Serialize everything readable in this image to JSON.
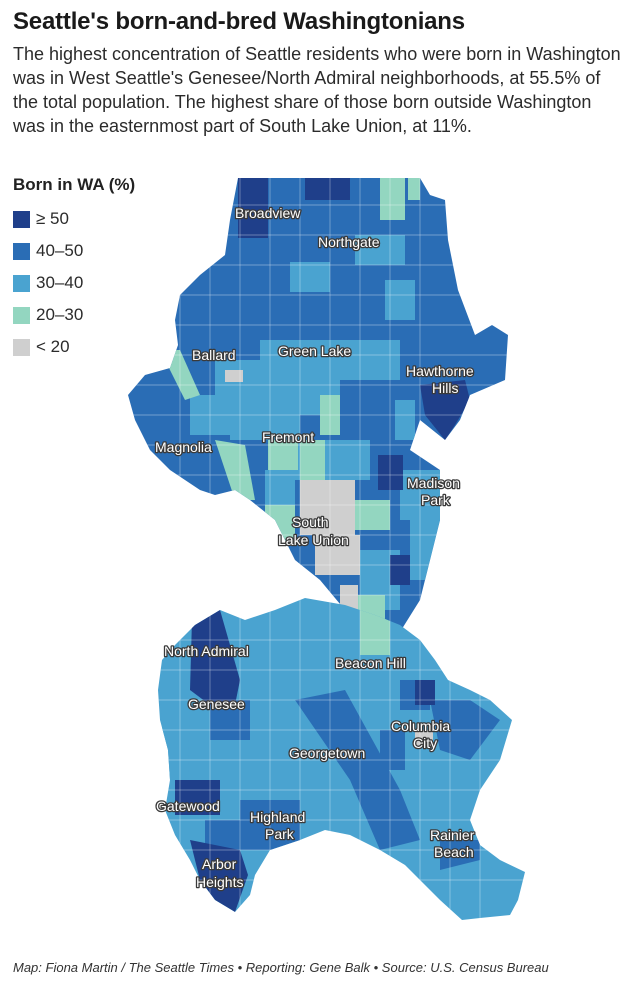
{
  "title": "Seattle's born-and-bred Washingtonians",
  "subtitle": "The highest concentration of Seattle residents who were born in Washington was in West Seattle's Genesee/North Admiral neighborhoods, at 55.5% of the total population. The highest share of those born outside Washington was in the easternmost part of South Lake Union, at 11%.",
  "legend": {
    "title": "Born in WA (%)",
    "items": [
      {
        "label": "≥ 50",
        "color": "#1f3f8a"
      },
      {
        "label": "40–50",
        "color": "#2a6db5"
      },
      {
        "label": "30–40",
        "color": "#4aa3d0"
      },
      {
        "label": "20–30",
        "color": "#93d6c0"
      },
      {
        "label": "< 20",
        "color": "#cfcfcf"
      }
    ]
  },
  "map_labels": {
    "broadview": "Broadview",
    "northgate": "Northgate",
    "ballard": "Ballard",
    "green_lake": "Green Lake",
    "hawthorne_hills_1": "Hawthorne",
    "hawthorne_hills_2": "Hills",
    "magnolia": "Magnolia",
    "fremont": "Fremont",
    "madison_park_1": "Madison",
    "madison_park_2": "Park",
    "south_lake_union_1": "South",
    "south_lake_union_2": "Lake Union",
    "north_admiral": "North Admiral",
    "beacon_hill": "Beacon Hill",
    "genesee": "Genesee",
    "columbia_city_1": "Columbia",
    "columbia_city_2": "City",
    "georgetown": "Georgetown",
    "gatewood": "Gatewood",
    "highland_park_1": "Highland",
    "highland_park_2": "Park",
    "rainier_beach_1": "Rainier",
    "rainier_beach_2": "Beach",
    "arbor_heights_1": "Arbor",
    "arbor_heights_2": "Heights"
  },
  "credit": "Map: Fiona Martin / The Seattle Times • Reporting: Gene Balk • Source: U.S. Census Bureau"
}
